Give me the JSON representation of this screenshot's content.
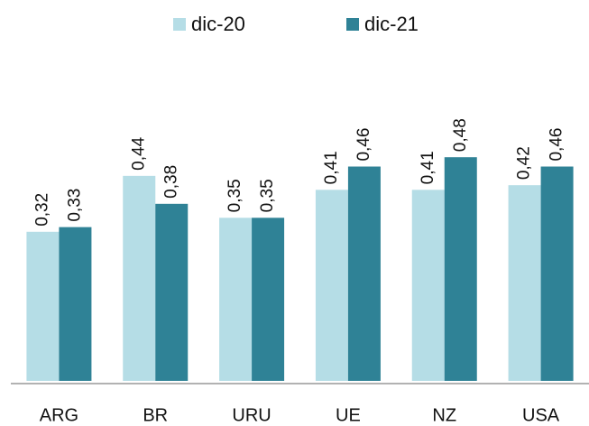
{
  "chart_data": {
    "type": "bar",
    "categories": [
      "ARG",
      "BR",
      "URU",
      "UE",
      "NZ",
      "USA"
    ],
    "series": [
      {
        "name": "dic-20",
        "color": "#b5dde6",
        "values": [
          0.32,
          0.44,
          0.35,
          0.41,
          0.41,
          0.42
        ],
        "value_labels": [
          "0,32",
          "0,44",
          "0,35",
          "0,41",
          "0,41",
          "0,42"
        ]
      },
      {
        "name": "dic-21",
        "color": "#2f8296",
        "values": [
          0.33,
          0.38,
          0.35,
          0.46,
          0.48,
          0.46
        ],
        "value_labels": [
          "0,33",
          "0,38",
          "0,35",
          "0,46",
          "0,48",
          "0,46"
        ]
      }
    ],
    "ylim": [
      0,
      0.8
    ],
    "legend": "top"
  }
}
